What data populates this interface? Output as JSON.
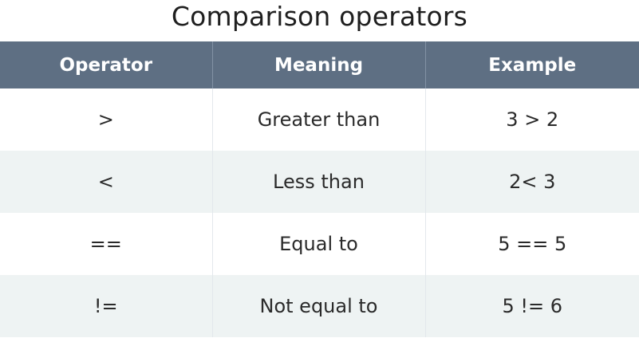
{
  "title": "Comparison operators",
  "colors": {
    "header_bg": "#5e6f83",
    "header_text": "#ffffff",
    "row_alt_bg": "#eef3f3",
    "text": "#2a2a2a"
  },
  "table": {
    "headers": [
      "Operator",
      "Meaning",
      "Example"
    ],
    "rows": [
      {
        "operator": ">",
        "meaning": "Greater than",
        "example": "3 > 2"
      },
      {
        "operator": "<",
        "meaning": "Less than",
        "example": "2< 3"
      },
      {
        "operator": "==",
        "meaning": "Equal to",
        "example": "5 == 5"
      },
      {
        "operator": "!=",
        "meaning": "Not equal to",
        "example": "5 != 6"
      }
    ]
  }
}
